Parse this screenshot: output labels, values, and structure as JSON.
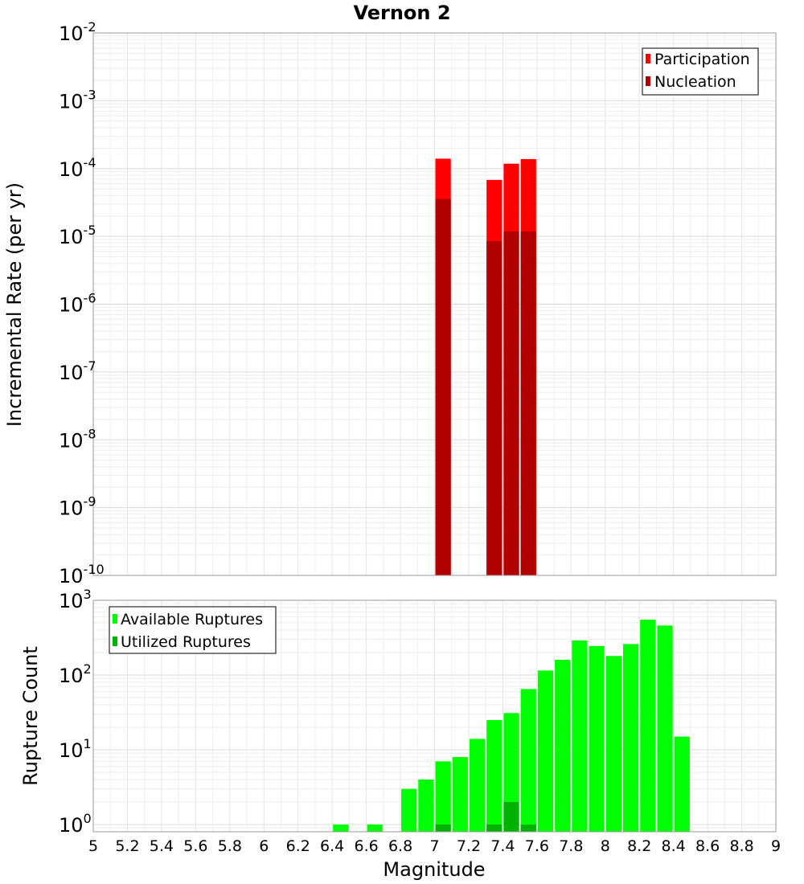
{
  "chart_data": [
    {
      "type": "bar",
      "title": "Vernon 2",
      "xlabel": "Magnitude",
      "ylabel": "Incremental Rate (per yr)",
      "yscale": "log",
      "xlim": [
        5,
        9
      ],
      "ylim": [
        1e-10,
        0.01
      ],
      "bin_width": 0.1,
      "y_ticks": [
        {
          "base": "10",
          "exp": "-10"
        },
        {
          "base": "10",
          "exp": "-9"
        },
        {
          "base": "10",
          "exp": "-8"
        },
        {
          "base": "10",
          "exp": "-7"
        },
        {
          "base": "10",
          "exp": "-6"
        },
        {
          "base": "10",
          "exp": "-5"
        },
        {
          "base": "10",
          "exp": "-4"
        },
        {
          "base": "10",
          "exp": "-3"
        },
        {
          "base": "10",
          "exp": "-2"
        }
      ],
      "legend_position": "top-right",
      "series": [
        {
          "name": "Participation",
          "color": "#ff0000",
          "x": [
            7.05,
            7.35,
            7.45,
            7.55
          ],
          "values": [
            0.00014,
            6.8e-05,
            0.000118,
            0.000138
          ]
        },
        {
          "name": "Nucleation",
          "color": "#b20000",
          "x": [
            7.05,
            7.35,
            7.45,
            7.55
          ],
          "values": [
            3.55e-05,
            8.5e-06,
            1.18e-05,
            1.18e-05
          ]
        }
      ]
    },
    {
      "type": "bar",
      "xlabel": "Magnitude",
      "ylabel": "Rupture Count",
      "yscale": "log",
      "xlim": [
        5,
        9
      ],
      "ylim": [
        0.8,
        1000
      ],
      "bin_width": 0.1,
      "y_ticks": [
        {
          "value": 1,
          "base": "10",
          "exp": "0"
        },
        {
          "value": 10,
          "base": "10",
          "exp": "1"
        },
        {
          "value": 100,
          "base": "10",
          "exp": "2"
        },
        {
          "value": 1000,
          "base": "10",
          "exp": "3"
        }
      ],
      "x_ticks": [
        "5",
        "5.2",
        "5.4",
        "5.6",
        "5.8",
        "6",
        "6.2",
        "6.4",
        "6.6",
        "6.8",
        "7",
        "7.2",
        "7.4",
        "7.6",
        "7.8",
        "8",
        "8.2",
        "8.4",
        "8.6",
        "8.8",
        "9"
      ],
      "legend_position": "top-left",
      "series": [
        {
          "name": "Available Ruptures",
          "color": "#00ff00",
          "x": [
            6.45,
            6.65,
            6.85,
            6.95,
            7.05,
            7.15,
            7.25,
            7.35,
            7.45,
            7.55,
            7.65,
            7.75,
            7.85,
            7.95,
            8.05,
            8.15,
            8.25,
            8.35,
            8.45
          ],
          "values": [
            1,
            1,
            3,
            4,
            7,
            8,
            14,
            25,
            31,
            65,
            115,
            160,
            290,
            245,
            180,
            260,
            550,
            460,
            15
          ]
        },
        {
          "name": "Utilized Ruptures",
          "color": "#00b200",
          "x": [
            7.05,
            7.35,
            7.45,
            7.55
          ],
          "values": [
            1,
            1,
            2,
            1
          ]
        }
      ]
    }
  ]
}
